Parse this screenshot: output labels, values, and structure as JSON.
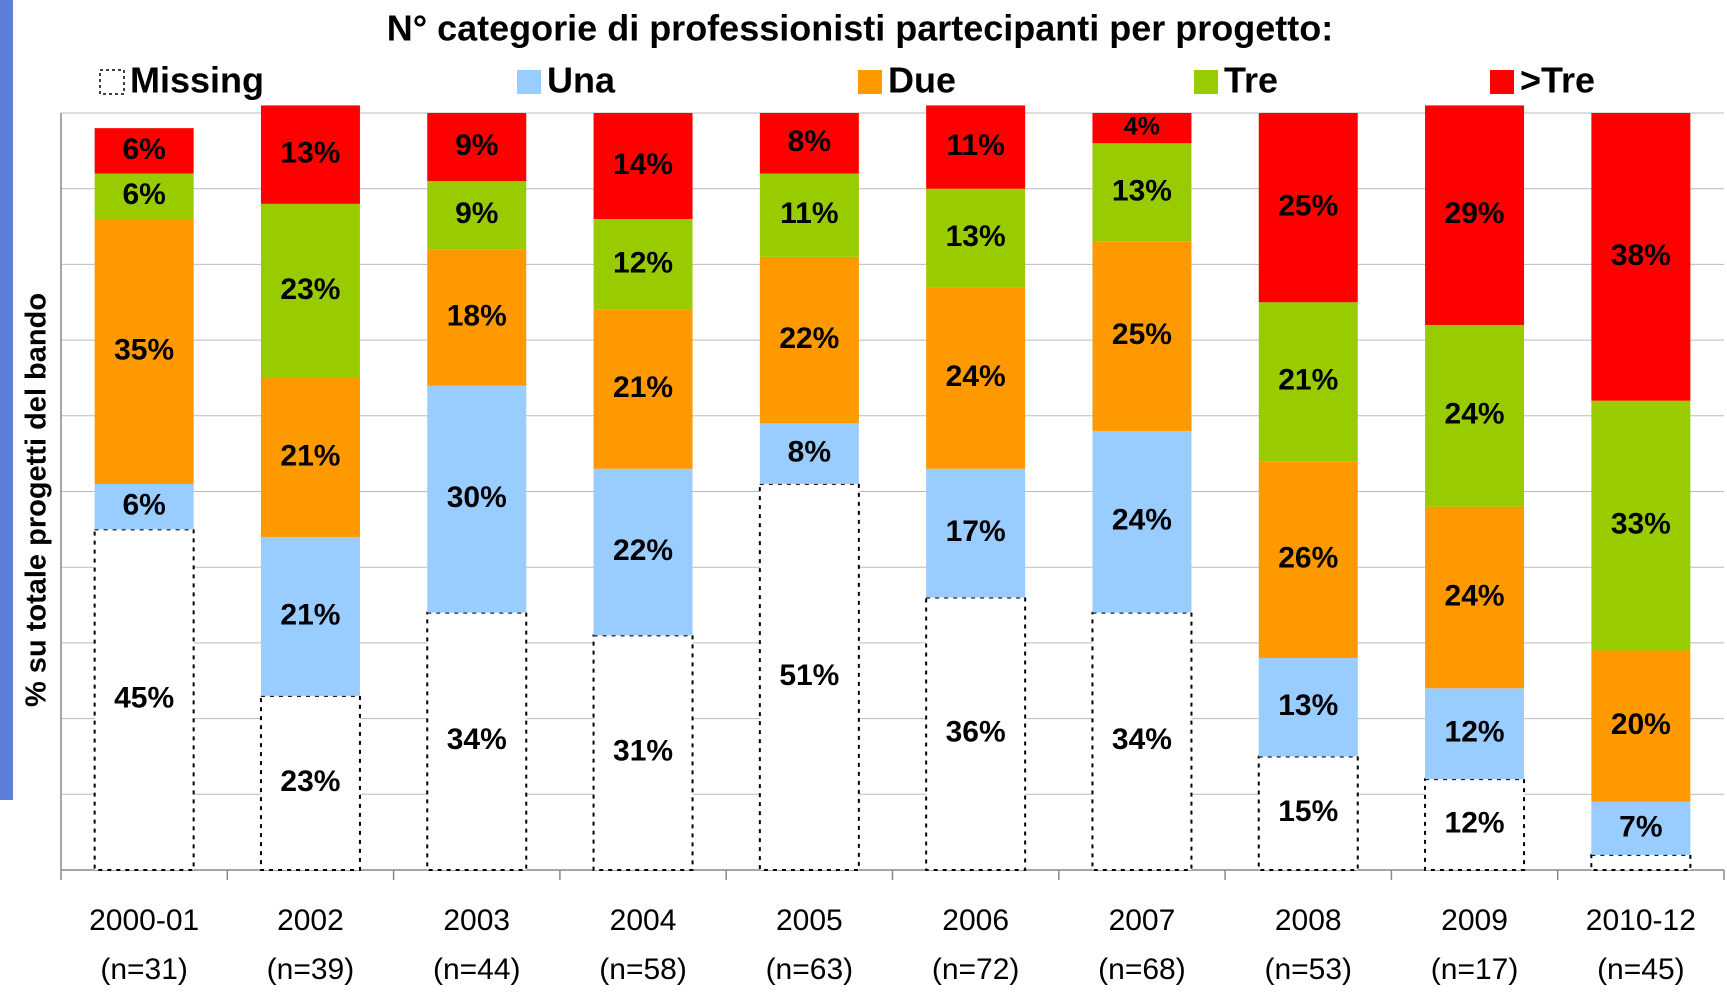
{
  "chart_data": {
    "type": "stacked_bar",
    "title": "N° categorie di professionisti partecipanti per progetto:",
    "y_label": "% su totale progetti del bando",
    "categories": [
      "2000-01",
      "2002",
      "2003",
      "2004",
      "2005",
      "2006",
      "2007",
      "2008",
      "2009",
      "2010-12"
    ],
    "category_notes": [
      "(n=31)",
      "(n=39)",
      "(n=44)",
      "(n=58)",
      "(n=63)",
      "(n=72)",
      "(n=68)",
      "(n=53)",
      "(n=17)",
      "(n=45)"
    ],
    "ylim": [
      0,
      100
    ],
    "yticks": [
      0,
      10,
      20,
      30,
      40,
      50,
      60,
      70,
      80,
      90,
      100
    ],
    "grid": true,
    "series": [
      {
        "name": "Missing",
        "color": "#ffffff",
        "dashed": true,
        "values": [
          45,
          23,
          34,
          31,
          51,
          36,
          34,
          15,
          12,
          2
        ],
        "value_labels": [
          "45%",
          "23%",
          "34%",
          "31%",
          "51%",
          "36%",
          "34%",
          "15%",
          "12%",
          null
        ]
      },
      {
        "name": "Una",
        "color": "#99ccff",
        "values": [
          6,
          21,
          30,
          22,
          8,
          17,
          24,
          13,
          12,
          7
        ],
        "value_labels": [
          "6%",
          "21%",
          "30%",
          "22%",
          "8%",
          "17%",
          "24%",
          "13%",
          "12%",
          "7%"
        ]
      },
      {
        "name": "Due",
        "color": "#ff9900",
        "values": [
          35,
          21,
          18,
          21,
          22,
          24,
          25,
          26,
          24,
          20
        ],
        "value_labels": [
          "35%",
          "21%",
          "18%",
          "21%",
          "22%",
          "24%",
          "25%",
          "26%",
          "24%",
          "20%"
        ]
      },
      {
        "name": "Tre",
        "color": "#99cc00",
        "values": [
          6,
          23,
          9,
          12,
          11,
          13,
          13,
          21,
          24,
          33
        ],
        "value_labels": [
          "6%",
          "23%",
          "9%",
          "12%",
          "11%",
          "13%",
          "13%",
          "21%",
          "24%",
          "33%"
        ]
      },
      {
        "name": ">Tre",
        "color": "#ff0000",
        "values": [
          6,
          13,
          9,
          14,
          8,
          11,
          4,
          25,
          29,
          38
        ],
        "value_labels": [
          "6%",
          "13%",
          "9%",
          "14%",
          "8%",
          "11%",
          "4%",
          "25%",
          "29%",
          "38%"
        ]
      }
    ]
  }
}
